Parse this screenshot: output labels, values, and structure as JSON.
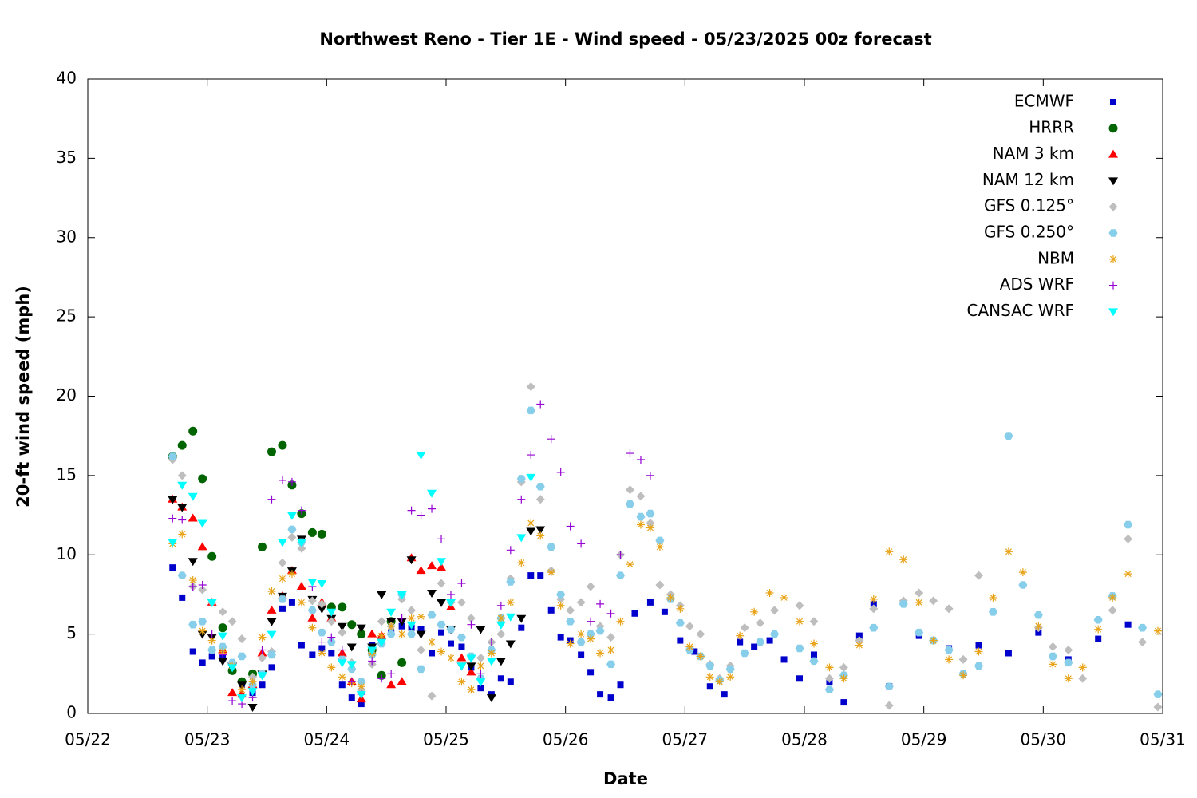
{
  "chart_data": {
    "type": "scatter",
    "title": "Northwest Reno - Tier 1E - Wind speed - 05/23/2025 00z forecast",
    "x_label": "Date",
    "y_label": "20-ft wind speed (mph)",
    "xlim": [
      0,
      9
    ],
    "ylim": [
      0,
      40
    ],
    "xticks": [
      {
        "value": 0,
        "label": "05/22"
      },
      {
        "value": 1,
        "label": "05/23"
      },
      {
        "value": 2,
        "label": "05/24"
      },
      {
        "value": 3,
        "label": "05/25"
      },
      {
        "value": 4,
        "label": "05/26"
      },
      {
        "value": 5,
        "label": "05/27"
      },
      {
        "value": 6,
        "label": "05/28"
      },
      {
        "value": 7,
        "label": "05/29"
      },
      {
        "value": 8,
        "label": "05/30"
      },
      {
        "value": 9,
        "label": "05/31"
      }
    ],
    "yticks": [
      0,
      5,
      10,
      15,
      20,
      25,
      30,
      35,
      40
    ],
    "legend": "top-right",
    "series": [
      {
        "name": "ECMWF",
        "color": "#0000cc",
        "marker": "square",
        "x": [
          0.71,
          0.79,
          0.88,
          0.96,
          1.04,
          1.13,
          1.21,
          1.29,
          1.38,
          1.46,
          1.54,
          1.63,
          1.71,
          1.79,
          1.88,
          1.96,
          2.04,
          2.13,
          2.21,
          2.29,
          2.38,
          2.46,
          2.54,
          2.63,
          2.71,
          2.79,
          2.88,
          2.96,
          3.04,
          3.13,
          3.21,
          3.29,
          3.38,
          3.46,
          3.54,
          3.63,
          3.71,
          3.79,
          3.88,
          3.96,
          4.04,
          4.13,
          4.21,
          4.29,
          4.38,
          4.46,
          4.58,
          4.71,
          4.83,
          4.96,
          5.08,
          5.21,
          5.33,
          5.46,
          5.58,
          5.71,
          5.83,
          5.96,
          6.08,
          6.21,
          6.33,
          6.46,
          6.58,
          6.71,
          6.96,
          7.21,
          7.46,
          7.71,
          7.96,
          8.21,
          8.46,
          8.71
        ],
        "values": [
          9.2,
          7.3,
          3.9,
          3.2,
          3.6,
          3.5,
          3.0,
          1.8,
          1.3,
          1.8,
          2.9,
          6.6,
          7.0,
          4.3,
          3.7,
          4.1,
          3.8,
          1.8,
          1.0,
          0.6,
          4.3,
          4.5,
          5.1,
          5.5,
          5.4,
          5.3,
          3.8,
          5.1,
          4.4,
          4.2,
          2.9,
          1.6,
          1.2,
          2.2,
          2.0,
          5.4,
          8.7,
          8.7,
          6.5,
          4.8,
          4.6,
          3.7,
          2.6,
          1.2,
          1.0,
          1.8,
          6.3,
          7.0,
          6.4,
          4.6,
          3.9,
          1.7,
          1.2,
          4.5,
          4.2,
          4.6,
          3.4,
          2.2,
          3.7,
          2.0,
          0.7,
          4.9,
          6.9,
          1.7,
          4.9,
          4.1,
          4.3,
          3.8,
          5.1,
          3.4,
          4.7,
          5.6
        ]
      },
      {
        "name": "HRRR",
        "color": "#006400",
        "marker": "circle",
        "x": [
          0.71,
          0.79,
          0.88,
          0.96,
          1.04,
          1.13,
          1.21,
          1.29,
          1.38,
          1.46,
          1.54,
          1.63,
          1.71,
          1.79,
          1.88,
          1.96,
          2.04,
          2.13,
          2.21,
          2.29,
          2.38,
          2.46,
          2.54,
          2.63
        ],
        "values": [
          16.2,
          16.9,
          17.8,
          14.8,
          9.9,
          5.4,
          2.7,
          2.0,
          2.5,
          10.5,
          16.5,
          16.9,
          14.4,
          12.6,
          11.4,
          11.3,
          6.7,
          6.7,
          5.6,
          5.0,
          4.0,
          2.4,
          5.8,
          3.2
        ]
      },
      {
        "name": "NAM 3 km",
        "color": "#ff0000",
        "marker": "triangle",
        "x": [
          0.71,
          0.79,
          0.88,
          0.96,
          1.04,
          1.13,
          1.21,
          1.29,
          1.38,
          1.46,
          1.54,
          1.63,
          1.71,
          1.79,
          1.88,
          1.96,
          2.04,
          2.13,
          2.21,
          2.29,
          2.38,
          2.46,
          2.54,
          2.63,
          2.71,
          2.79,
          2.88,
          2.96,
          3.04,
          3.13,
          3.21
        ],
        "values": [
          13.5,
          13.0,
          12.3,
          10.5,
          7.0,
          4.0,
          1.3,
          1.2,
          1.8,
          3.8,
          6.5,
          7.4,
          9.0,
          8.0,
          6.0,
          7.0,
          6.0,
          3.8,
          2.0,
          0.9,
          5.0,
          4.9,
          1.8,
          2.0,
          9.8,
          9.0,
          9.3,
          9.2,
          6.7,
          3.5,
          2.6
        ]
      },
      {
        "name": "NAM 12 km",
        "color": "#000000",
        "marker": "triangle-down",
        "x": [
          0.71,
          0.79,
          0.88,
          0.96,
          1.04,
          1.13,
          1.21,
          1.29,
          1.38,
          1.46,
          1.54,
          1.63,
          1.71,
          1.79,
          1.88,
          1.96,
          2.04,
          2.13,
          2.21,
          2.29,
          2.38,
          2.46,
          2.54,
          2.63,
          2.71,
          2.79,
          2.88,
          2.96,
          3.04,
          3.13,
          3.21,
          3.29,
          3.38,
          3.46,
          3.54,
          3.63,
          3.71,
          3.79
        ],
        "values": [
          13.5,
          13.0,
          9.6,
          5.0,
          4.8,
          3.3,
          3.0,
          1.8,
          0.4,
          2.5,
          5.8,
          7.4,
          9.0,
          11.0,
          7.2,
          6.6,
          6.0,
          5.5,
          4.2,
          5.4,
          4.2,
          7.5,
          5.8,
          5.8,
          9.7,
          5.0,
          7.6,
          7.0,
          5.3,
          3.0,
          3.0,
          5.3,
          1.0,
          3.3,
          4.4,
          6.0,
          11.5,
          11.6
        ]
      },
      {
        "name": "GFS 0.125°",
        "color": "#bebebe",
        "marker": "diamond",
        "x": [
          0.71,
          0.79,
          0.88,
          0.96,
          1.04,
          1.13,
          1.21,
          1.29,
          1.38,
          1.46,
          1.54,
          1.63,
          1.71,
          1.79,
          1.88,
          1.96,
          2.04,
          2.13,
          2.21,
          2.29,
          2.38,
          2.46,
          2.54,
          2.63,
          2.71,
          2.79,
          2.88,
          2.96,
          3.04,
          3.13,
          3.21,
          3.29,
          3.38,
          3.46,
          3.54,
          3.63,
          3.71,
          3.79,
          3.88,
          3.96,
          4.04,
          4.13,
          4.21,
          4.29,
          4.38,
          4.46,
          4.54,
          4.63,
          4.71,
          4.79,
          4.88,
          4.96,
          5.04,
          5.13,
          5.21,
          5.29,
          5.38,
          5.5,
          5.63,
          5.75,
          5.96,
          6.08,
          6.21,
          6.33,
          6.46,
          6.58,
          6.71,
          6.83,
          6.96,
          7.08,
          7.21,
          7.33,
          7.46,
          7.71,
          7.96,
          8.08,
          8.21,
          8.33,
          8.58,
          8.71,
          8.83,
          8.96
        ],
        "values": [
          16.0,
          15.0,
          8.0,
          7.8,
          7.0,
          6.4,
          5.8,
          4.7,
          2.3,
          3.5,
          3.9,
          9.5,
          11.1,
          10.4,
          7.1,
          6.9,
          5.8,
          5.1,
          3.2,
          1.5,
          3.1,
          5.8,
          5.5,
          7.2,
          6.5,
          4.0,
          1.1,
          8.2,
          7.0,
          7.0,
          6.0,
          3.5,
          4.5,
          5.0,
          8.5,
          14.6,
          20.6,
          13.5,
          9.0,
          7.2,
          6.5,
          7.0,
          8.0,
          5.5,
          4.8,
          10.0,
          14.1,
          13.7,
          12.0,
          8.1,
          7.5,
          6.8,
          5.5,
          5.0,
          3.1,
          2.2,
          3.0,
          5.4,
          5.7,
          6.5,
          6.8,
          5.8,
          2.2,
          2.9,
          4.6,
          6.6,
          0.5,
          7.1,
          7.6,
          7.1,
          6.6,
          3.4,
          8.7,
          17.5,
          5.4,
          4.2,
          4.0,
          2.2,
          6.5,
          11.0,
          4.5,
          0.4
        ]
      },
      {
        "name": "GFS 0.250°",
        "color": "#87ceeb",
        "marker": "hexagon",
        "x": [
          0.71,
          0.79,
          0.88,
          0.96,
          1.04,
          1.13,
          1.21,
          1.29,
          1.38,
          1.46,
          1.54,
          1.63,
          1.71,
          1.79,
          1.88,
          1.96,
          2.04,
          2.13,
          2.21,
          2.29,
          2.38,
          2.46,
          2.54,
          2.63,
          2.71,
          2.79,
          2.88,
          2.96,
          3.04,
          3.13,
          3.21,
          3.29,
          3.38,
          3.46,
          3.54,
          3.63,
          3.71,
          3.79,
          3.88,
          3.96,
          4.04,
          4.13,
          4.21,
          4.29,
          4.38,
          4.46,
          4.54,
          4.63,
          4.71,
          4.79,
          4.88,
          4.96,
          5.04,
          5.13,
          5.21,
          5.29,
          5.38,
          5.5,
          5.63,
          5.75,
          5.96,
          6.08,
          6.21,
          6.33,
          6.58,
          6.71,
          6.83,
          6.96,
          7.08,
          7.21,
          7.33,
          7.46,
          7.58,
          7.71,
          7.83,
          7.96,
          8.08,
          8.21,
          8.46,
          8.58,
          8.71,
          8.83,
          8.96
        ],
        "values": [
          16.2,
          8.7,
          5.6,
          5.8,
          4.0,
          4.2,
          3.2,
          3.6,
          1.8,
          2.5,
          3.7,
          7.2,
          11.6,
          10.8,
          6.5,
          5.1,
          4.5,
          3.4,
          2.8,
          2.0,
          3.7,
          4.4,
          5.0,
          7.5,
          5.0,
          2.8,
          6.2,
          5.6,
          5.3,
          4.8,
          3.6,
          2.2,
          4.0,
          6.0,
          8.3,
          14.8,
          19.1,
          14.3,
          10.5,
          7.5,
          5.8,
          4.5,
          5.0,
          5.2,
          3.1,
          8.7,
          13.2,
          12.4,
          12.6,
          10.9,
          7.2,
          5.7,
          4.0,
          3.6,
          3.0,
          2.1,
          2.8,
          3.8,
          4.5,
          5.0,
          4.1,
          3.3,
          1.5,
          2.4,
          5.4,
          1.7,
          6.9,
          5.1,
          4.6,
          4.0,
          2.5,
          3.0,
          6.4,
          17.5,
          8.1,
          6.2,
          3.6,
          3.2,
          5.9,
          7.4,
          11.9,
          5.4,
          1.2
        ]
      },
      {
        "name": "NBM",
        "color": "#e8a317",
        "marker": "asterisk",
        "x": [
          0.71,
          0.79,
          0.88,
          0.96,
          1.04,
          1.13,
          1.21,
          1.29,
          1.38,
          1.46,
          1.54,
          1.63,
          1.71,
          1.79,
          1.88,
          1.96,
          2.04,
          2.13,
          2.21,
          2.29,
          2.38,
          2.46,
          2.54,
          2.63,
          2.71,
          2.79,
          2.88,
          2.96,
          3.04,
          3.13,
          3.21,
          3.29,
          3.38,
          3.46,
          3.54,
          3.63,
          3.71,
          3.79,
          3.88,
          3.96,
          4.04,
          4.13,
          4.21,
          4.29,
          4.38,
          4.46,
          4.54,
          4.63,
          4.71,
          4.79,
          4.88,
          4.96,
          5.04,
          5.13,
          5.21,
          5.29,
          5.38,
          5.46,
          5.58,
          5.71,
          5.83,
          5.96,
          6.08,
          6.21,
          6.33,
          6.46,
          6.58,
          6.71,
          6.83,
          6.96,
          7.08,
          7.21,
          7.33,
          7.46,
          7.58,
          7.71,
          7.83,
          7.96,
          8.08,
          8.21,
          8.33,
          8.46,
          8.58,
          8.71,
          8.96
        ],
        "values": [
          10.7,
          11.3,
          8.4,
          5.2,
          4.6,
          3.9,
          3.0,
          1.5,
          2.0,
          4.8,
          7.7,
          8.5,
          8.8,
          7.0,
          5.4,
          3.8,
          2.9,
          2.3,
          1.9,
          1.7,
          3.8,
          4.9,
          5.5,
          5.0,
          6.0,
          6.1,
          4.5,
          3.9,
          3.5,
          2.0,
          1.5,
          3.0,
          3.8,
          6.0,
          7.0,
          9.5,
          12.0,
          11.2,
          8.9,
          6.8,
          4.4,
          5.0,
          4.7,
          3.8,
          4.0,
          5.8,
          9.4,
          11.9,
          11.7,
          10.5,
          7.3,
          6.6,
          4.2,
          3.6,
          2.3,
          2.0,
          2.3,
          4.9,
          6.4,
          7.6,
          7.3,
          5.8,
          4.4,
          2.9,
          2.2,
          4.3,
          7.2,
          10.2,
          9.7,
          7.0,
          4.6,
          3.4,
          2.4,
          3.9,
          7.3,
          10.2,
          8.9,
          5.5,
          3.1,
          2.2,
          2.9,
          5.3,
          7.3,
          8.8,
          5.2
        ]
      },
      {
        "name": "ADS WRF",
        "color": "#9400d3",
        "marker": "plus",
        "x": [
          0.71,
          0.79,
          0.88,
          0.96,
          1.04,
          1.13,
          1.21,
          1.29,
          1.38,
          1.46,
          1.54,
          1.63,
          1.71,
          1.79,
          1.88,
          1.96,
          2.04,
          2.13,
          2.21,
          2.29,
          2.38,
          2.46,
          2.54,
          2.63,
          2.71,
          2.79,
          2.88,
          2.96,
          3.04,
          3.13,
          3.21,
          3.29,
          3.38,
          3.46,
          3.54,
          3.63,
          3.71,
          3.79,
          3.88,
          3.96,
          4.04,
          4.13,
          4.21,
          4.29,
          4.38,
          4.46,
          4.54,
          4.63,
          4.71
        ],
        "values": [
          12.3,
          12.2,
          8.0,
          8.1,
          5.0,
          3.7,
          0.8,
          0.6,
          1.0,
          4.0,
          13.5,
          14.7,
          14.6,
          12.8,
          8.0,
          4.5,
          4.8,
          4.0,
          2.0,
          1.2,
          3.3,
          2.2,
          2.5,
          6.0,
          12.8,
          12.5,
          12.9,
          11.0,
          7.5,
          8.2,
          5.6,
          2.5,
          4.5,
          6.8,
          10.3,
          13.5,
          16.3,
          19.5,
          17.3,
          15.2,
          11.8,
          10.7,
          5.8,
          6.9,
          6.3,
          10.0,
          16.4,
          16.0,
          15.0
        ]
      },
      {
        "name": "CANSAC WRF",
        "color": "#00ffff",
        "marker": "triangle-down",
        "x": [
          0.71,
          0.79,
          0.88,
          0.96,
          1.04,
          1.13,
          1.21,
          1.29,
          1.38,
          1.46,
          1.54,
          1.63,
          1.71,
          1.79,
          1.88,
          1.96,
          2.04,
          2.13,
          2.21,
          2.29,
          2.38,
          2.46,
          2.54,
          2.63,
          2.71,
          2.79,
          2.88,
          2.96,
          3.04,
          3.13,
          3.21,
          3.29,
          3.38,
          3.46,
          3.54,
          3.63,
          3.71
        ],
        "values": [
          10.8,
          14.4,
          13.7,
          12.0,
          7.0,
          4.9,
          2.9,
          1.0,
          1.4,
          2.4,
          5.0,
          10.8,
          12.5,
          10.8,
          8.3,
          8.2,
          6.4,
          3.2,
          3.1,
          1.2,
          4.0,
          4.5,
          6.4,
          7.5,
          5.6,
          16.3,
          13.9,
          9.6,
          7.0,
          3.0,
          3.5,
          2.0,
          3.3,
          5.6,
          6.1,
          11.1,
          14.9
        ]
      }
    ]
  }
}
